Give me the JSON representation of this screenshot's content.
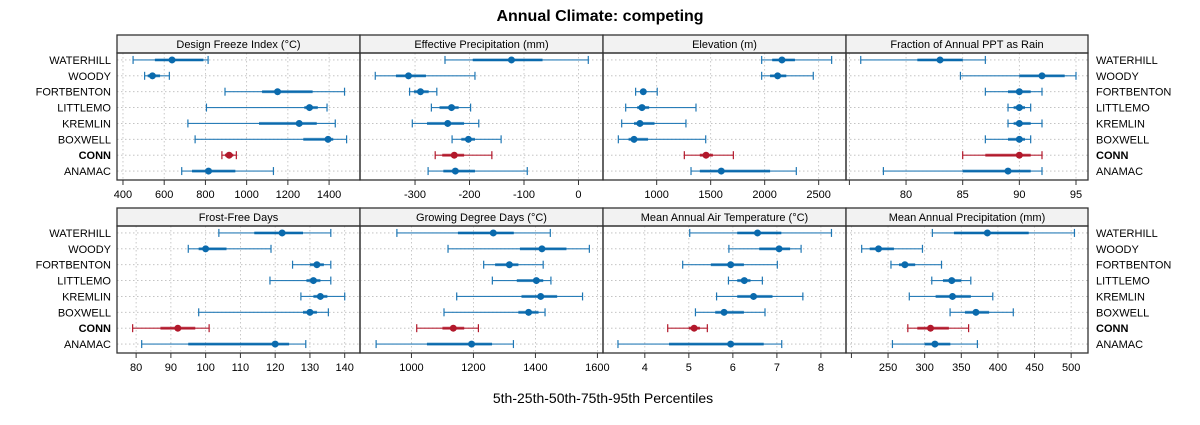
{
  "chart_data": {
    "type": "dot-interval",
    "title": "Annual Climate: competing",
    "xlabel": "5th-25th-50th-75th-95th Percentiles",
    "interval_legend": "5th-25th-50th-75th-95th Percentiles",
    "rows": [
      "WATERHILL",
      "WOODY",
      "FORTBENTON",
      "LITTLEMO",
      "KREMLIN",
      "BOXWELL",
      "CONN",
      "ANAMAC"
    ],
    "highlighted_row": "CONN",
    "colors": {
      "default": "#1f77b4",
      "default_dark": "#0a6aad",
      "highlight": "#b2182b"
    },
    "legend_position": "none",
    "grid": true,
    "panels": [
      {
        "name": "Design Freeze Index (°C)",
        "xlim": [
          371,
          1550
        ],
        "ticks": [
          400,
          600,
          800,
          1000,
          1200,
          1400
        ],
        "tick_labels": [
          "400",
          "600",
          "800",
          "1000",
          "1200",
          "1400"
        ],
        "series": [
          {
            "row": "WATERHILL",
            "p5": 449,
            "p25": 555,
            "p50": 638,
            "p75": 790,
            "p95": 813
          },
          {
            "row": "WOODY",
            "p5": 505,
            "p25": 520,
            "p50": 543,
            "p75": 580,
            "p95": 625
          },
          {
            "row": "FORTBENTON",
            "p5": 895,
            "p25": 1075,
            "p50": 1150,
            "p75": 1320,
            "p95": 1475
          },
          {
            "row": "LITTLEMO",
            "p5": 805,
            "p25": 1280,
            "p50": 1305,
            "p75": 1345,
            "p95": 1390
          },
          {
            "row": "KREMLIN",
            "p5": 715,
            "p25": 1060,
            "p50": 1255,
            "p75": 1340,
            "p95": 1430
          },
          {
            "row": "BOXWELL",
            "p5": 750,
            "p25": 1275,
            "p50": 1395,
            "p75": 1420,
            "p95": 1485
          },
          {
            "row": "CONN",
            "p5": 880,
            "p25": 895,
            "p50": 915,
            "p75": 935,
            "p95": 950
          },
          {
            "row": "ANAMAC",
            "p5": 685,
            "p25": 735,
            "p50": 815,
            "p75": 945,
            "p95": 1130
          }
        ]
      },
      {
        "name": "Effective Precipitation (mm)",
        "xlim": [
          -401,
          45
        ],
        "ticks": [
          -300,
          -200,
          -100,
          0
        ],
        "tick_labels": [
          "-300",
          "-200",
          "-100",
          "0"
        ],
        "series": [
          {
            "row": "WATERHILL",
            "p5": -245,
            "p25": -194,
            "p50": -123,
            "p75": -66,
            "p95": 18
          },
          {
            "row": "WOODY",
            "p5": -373,
            "p25": -335,
            "p50": -312,
            "p75": -280,
            "p95": -190
          },
          {
            "row": "FORTBENTON",
            "p5": -310,
            "p25": -302,
            "p50": -290,
            "p75": -275,
            "p95": -260
          },
          {
            "row": "LITTLEMO",
            "p5": -270,
            "p25": -255,
            "p50": -233,
            "p75": -220,
            "p95": -198
          },
          {
            "row": "KREMLIN",
            "p5": -305,
            "p25": -278,
            "p50": -240,
            "p75": -210,
            "p95": -183
          },
          {
            "row": "BOXWELL",
            "p5": -232,
            "p25": -215,
            "p50": -202,
            "p75": -190,
            "p95": -142
          },
          {
            "row": "CONN",
            "p5": -263,
            "p25": -250,
            "p50": -228,
            "p75": -210,
            "p95": -159
          },
          {
            "row": "ANAMAC",
            "p5": -276,
            "p25": -248,
            "p50": -226,
            "p75": -190,
            "p95": -94
          }
        ]
      },
      {
        "name": "Elevation (m)",
        "xlim": [
          503,
          2753
        ],
        "ticks": [
          1000,
          1500,
          2000,
          2500
        ],
        "tick_labels": [
          "1000",
          "1500",
          "2000",
          "2500"
        ],
        "series": [
          {
            "row": "WATERHILL",
            "p5": 1972,
            "p25": 2070,
            "p50": 2160,
            "p75": 2280,
            "p95": 2620
          },
          {
            "row": "WOODY",
            "p5": 1972,
            "p25": 2050,
            "p50": 2120,
            "p75": 2200,
            "p95": 2450
          },
          {
            "row": "FORTBENTON",
            "p5": 805,
            "p25": 850,
            "p50": 876,
            "p75": 900,
            "p95": 1005
          },
          {
            "row": "LITTLEMO",
            "p5": 713,
            "p25": 820,
            "p50": 864,
            "p75": 930,
            "p95": 1364
          },
          {
            "row": "KREMLIN",
            "p5": 676,
            "p25": 790,
            "p50": 845,
            "p75": 980,
            "p95": 1271
          },
          {
            "row": "BOXWELL",
            "p5": 645,
            "p25": 740,
            "p50": 790,
            "p75": 920,
            "p95": 1454
          },
          {
            "row": "CONN",
            "p5": 1256,
            "p25": 1400,
            "p50": 1457,
            "p75": 1520,
            "p95": 1710
          },
          {
            "row": "ANAMAC",
            "p5": 1318,
            "p25": 1400,
            "p50": 1598,
            "p75": 2050,
            "p95": 2293
          }
        ]
      },
      {
        "name": "Fraction of Annual PPT as Rain",
        "xlim": [
          74.7,
          96.06
        ],
        "ticks": [
          75,
          80,
          85,
          90,
          95
        ],
        "tick_labels": [
          "",
          "80",
          "85",
          "90",
          "95"
        ],
        "series": [
          {
            "row": "WATERHILL",
            "p5": 76,
            "p25": 81,
            "p50": 83,
            "p75": 85,
            "p95": 87
          },
          {
            "row": "WOODY",
            "p5": 84.8,
            "p25": 90,
            "p50": 92,
            "p75": 94,
            "p95": 95
          },
          {
            "row": "FORTBENTON",
            "p5": 87,
            "p25": 89,
            "p50": 90,
            "p75": 91,
            "p95": 92
          },
          {
            "row": "LITTLEMO",
            "p5": 89,
            "p25": 89.5,
            "p50": 90,
            "p75": 90.5,
            "p95": 91
          },
          {
            "row": "KREMLIN",
            "p5": 89,
            "p25": 89.5,
            "p50": 90,
            "p75": 91,
            "p95": 92
          },
          {
            "row": "BOXWELL",
            "p5": 87,
            "p25": 89,
            "p50": 90,
            "p75": 90.5,
            "p95": 91
          },
          {
            "row": "CONN",
            "p5": 85,
            "p25": 87,
            "p50": 90,
            "p75": 91,
            "p95": 92
          },
          {
            "row": "ANAMAC",
            "p5": 78,
            "p25": 85,
            "p50": 89,
            "p75": 91,
            "p95": 92
          }
        ]
      },
      {
        "name": "Frost-Free Days",
        "xlim": [
          74.5,
          144.4
        ],
        "ticks": [
          80,
          90,
          100,
          110,
          120,
          130,
          140
        ],
        "tick_labels": [
          "80",
          "90",
          "100",
          "110",
          "120",
          "130",
          "140"
        ],
        "series": [
          {
            "row": "WATERHILL",
            "p5": 103.8,
            "p25": 114,
            "p50": 122,
            "p75": 128,
            "p95": 136
          },
          {
            "row": "WOODY",
            "p5": 95,
            "p25": 98,
            "p50": 100,
            "p75": 106,
            "p95": 118.8
          },
          {
            "row": "FORTBENTON",
            "p5": 125,
            "p25": 130,
            "p50": 132,
            "p75": 134,
            "p95": 136
          },
          {
            "row": "LITTLEMO",
            "p5": 118.5,
            "p25": 129,
            "p50": 131,
            "p75": 133,
            "p95": 136
          },
          {
            "row": "KREMLIN",
            "p5": 127.4,
            "p25": 131,
            "p50": 133,
            "p75": 135,
            "p95": 140
          },
          {
            "row": "BOXWELL",
            "p5": 98,
            "p25": 128,
            "p50": 130,
            "p75": 132,
            "p95": 135.3
          },
          {
            "row": "CONN",
            "p5": 79,
            "p25": 87,
            "p50": 92,
            "p75": 97,
            "p95": 101
          },
          {
            "row": "ANAMAC",
            "p5": 81.6,
            "p25": 95,
            "p50": 120,
            "p75": 124,
            "p95": 128.8
          }
        ]
      },
      {
        "name": "Growing Degree Days (°C)",
        "xlim": [
          834,
          1618
        ],
        "ticks": [
          1000,
          1200,
          1400,
          1600
        ],
        "tick_labels": [
          "1000",
          "1200",
          "1400",
          "1600"
        ],
        "series": [
          {
            "row": "WATERHILL",
            "p5": 953,
            "p25": 1150,
            "p50": 1264,
            "p75": 1330,
            "p95": 1448
          },
          {
            "row": "WOODY",
            "p5": 1118,
            "p25": 1350,
            "p50": 1421,
            "p75": 1500,
            "p95": 1574
          },
          {
            "row": "FORTBENTON",
            "p5": 1233,
            "p25": 1270,
            "p50": 1316,
            "p75": 1345,
            "p95": 1425
          },
          {
            "row": "LITTLEMO",
            "p5": 1261,
            "p25": 1340,
            "p50": 1403,
            "p75": 1425,
            "p95": 1450
          },
          {
            "row": "KREMLIN",
            "p5": 1146,
            "p25": 1355,
            "p50": 1417,
            "p75": 1470,
            "p95": 1552
          },
          {
            "row": "BOXWELL",
            "p5": 1105,
            "p25": 1345,
            "p50": 1378,
            "p75": 1410,
            "p95": 1431
          },
          {
            "row": "CONN",
            "p5": 1017,
            "p25": 1100,
            "p50": 1135,
            "p75": 1170,
            "p95": 1216
          },
          {
            "row": "ANAMAC",
            "p5": 886,
            "p25": 1050,
            "p50": 1194,
            "p75": 1260,
            "p95": 1329
          }
        ]
      },
      {
        "name": "Mean Annual Air Temperature (°C)",
        "xlim": [
          3.05,
          8.57
        ],
        "ticks": [
          4,
          5,
          6,
          7,
          8
        ],
        "tick_labels": [
          "4",
          "5",
          "6",
          "7",
          "8"
        ],
        "series": [
          {
            "row": "WATERHILL",
            "p5": 5.02,
            "p25": 6.1,
            "p50": 6.56,
            "p75": 7.1,
            "p95": 8.24
          },
          {
            "row": "WOODY",
            "p5": 5.91,
            "p25": 6.6,
            "p50": 7.05,
            "p75": 7.3,
            "p95": 7.55
          },
          {
            "row": "FORTBENTON",
            "p5": 4.86,
            "p25": 5.5,
            "p50": 5.95,
            "p75": 6.25,
            "p95": 7.01
          },
          {
            "row": "LITTLEMO",
            "p5": 5.9,
            "p25": 6.1,
            "p50": 6.26,
            "p75": 6.4,
            "p95": 6.67
          },
          {
            "row": "KREMLIN",
            "p5": 5.63,
            "p25": 6.1,
            "p50": 6.47,
            "p75": 6.9,
            "p95": 7.59
          },
          {
            "row": "BOXWELL",
            "p5": 5.15,
            "p25": 5.6,
            "p50": 5.8,
            "p75": 6.25,
            "p95": 6.73
          },
          {
            "row": "CONN",
            "p5": 4.52,
            "p25": 5.0,
            "p50": 5.12,
            "p75": 5.25,
            "p95": 5.42
          },
          {
            "row": "ANAMAC",
            "p5": 3.39,
            "p25": 4.55,
            "p50": 5.95,
            "p75": 6.7,
            "p95": 7.11
          }
        ]
      },
      {
        "name": "Mean Annual Precipitation (mm)",
        "xlim": [
          192.6,
          523
        ],
        "ticks": [
          200,
          250,
          300,
          350,
          400,
          450,
          500
        ],
        "tick_labels": [
          "",
          "250",
          "300",
          "350",
          "400",
          "450",
          "500"
        ],
        "series": [
          {
            "row": "WATERHILL",
            "p5": 310.5,
            "p25": 340,
            "p50": 385.6,
            "p75": 442,
            "p95": 504.5
          },
          {
            "row": "WOODY",
            "p5": 214,
            "p25": 225,
            "p50": 237,
            "p75": 258,
            "p95": 297
          },
          {
            "row": "FORTBENTON",
            "p5": 254,
            "p25": 265,
            "p50": 273,
            "p75": 287,
            "p95": 323
          },
          {
            "row": "LITTLEMO",
            "p5": 309.7,
            "p25": 325,
            "p50": 337,
            "p75": 350,
            "p95": 363
          },
          {
            "row": "KREMLIN",
            "p5": 279,
            "p25": 315,
            "p50": 338,
            "p75": 363,
            "p95": 393
          },
          {
            "row": "BOXWELL",
            "p5": 334.7,
            "p25": 355,
            "p50": 370,
            "p75": 388,
            "p95": 421
          },
          {
            "row": "CONN",
            "p5": 277,
            "p25": 290,
            "p50": 308,
            "p75": 333,
            "p95": 360
          },
          {
            "row": "ANAMAC",
            "p5": 256,
            "p25": 300,
            "p50": 314,
            "p75": 335,
            "p95": 372
          }
        ]
      }
    ]
  }
}
